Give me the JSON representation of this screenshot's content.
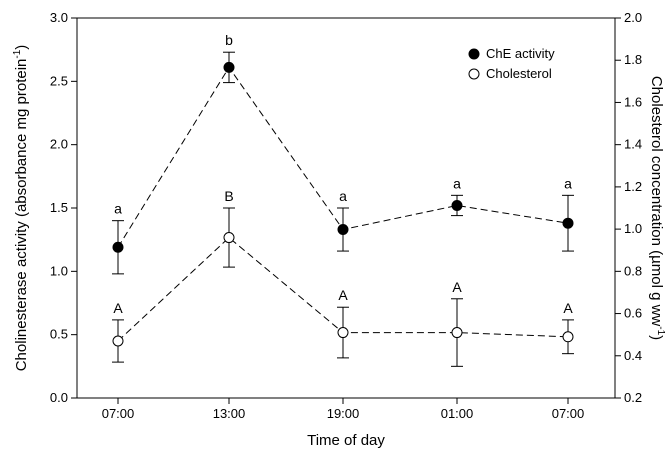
{
  "chart_data": {
    "type": "line",
    "categories": [
      "07:00",
      "13:00",
      "19:00",
      "01:00",
      "07:00"
    ],
    "xlabel": "Time of day",
    "ylabel_left": "Cholinesterase activity (absorbance mg protein",
    "ylabel_left_sup": "-1",
    "ylabel_left_end": ")",
    "ylabel_right": "Cholesterol concentration (µmol g ww",
    "ylabel_right_sup": "-1",
    "ylabel_right_end": ")",
    "ylim_left": [
      0,
      3.0
    ],
    "ylim_right": [
      0.2,
      2.0
    ],
    "yticks_left": [
      "0.0",
      "0.5",
      "1.0",
      "1.5",
      "2.0",
      "2.5",
      "3.0"
    ],
    "yticks_right": [
      "0.2",
      "0.4",
      "0.6",
      "0.8",
      "1.0",
      "1.2",
      "1.4",
      "1.6",
      "1.8",
      "2.0"
    ],
    "legend_position": "top-right",
    "series": [
      {
        "name": "ChE activity",
        "axis": "left",
        "marker": "filled-circle",
        "values": [
          1.19,
          2.61,
          1.33,
          1.52,
          1.38
        ],
        "error": [
          0.21,
          0.12,
          0.17,
          0.08,
          0.22
        ],
        "labels": [
          "a",
          "b",
          "a",
          "a",
          "a"
        ]
      },
      {
        "name": "Cholesterol",
        "axis": "right",
        "marker": "open-circle",
        "values": [
          0.47,
          0.96,
          0.51,
          0.51,
          0.49
        ],
        "error": [
          0.1,
          0.14,
          0.12,
          0.16,
          0.08
        ],
        "labels": [
          "A",
          "B",
          "A",
          "A",
          "A"
        ]
      }
    ]
  }
}
